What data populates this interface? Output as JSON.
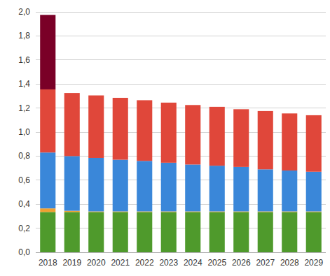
{
  "chart_data": {
    "type": "bar",
    "stacked": true,
    "grid": true,
    "categories": [
      "2018",
      "2019",
      "2020",
      "2021",
      "2022",
      "2023",
      "2024",
      "2025",
      "2026",
      "2027",
      "2028",
      "2029"
    ],
    "series": [
      {
        "color": "#4f9a2c",
        "values": [
          0.335,
          0.335,
          0.335,
          0.335,
          0.335,
          0.335,
          0.335,
          0.335,
          0.335,
          0.335,
          0.335,
          0.335
        ]
      },
      {
        "color": "#f0a030",
        "values": [
          0.03,
          0.01,
          0.005,
          0.005,
          0.005,
          0.005,
          0.005,
          0.005,
          0.005,
          0.005,
          0.005,
          0.005
        ]
      },
      {
        "color": "#3a87d9",
        "values": [
          0.465,
          0.455,
          0.445,
          0.43,
          0.42,
          0.405,
          0.39,
          0.38,
          0.37,
          0.35,
          0.34,
          0.33
        ]
      },
      {
        "color": "#e0473a",
        "values": [
          0.525,
          0.525,
          0.52,
          0.515,
          0.505,
          0.5,
          0.495,
          0.49,
          0.48,
          0.485,
          0.475,
          0.47
        ]
      },
      {
        "color": "#7a0027",
        "values": [
          0.62,
          0,
          0,
          0,
          0,
          0,
          0,
          0,
          0,
          0,
          0,
          0
        ]
      }
    ],
    "ylim": [
      0,
      2.0
    ],
    "yticks": [
      {
        "value": 0,
        "label": "0,0"
      },
      {
        "value": 0.2,
        "label": "0,2"
      },
      {
        "value": 0.4,
        "label": "0,4"
      },
      {
        "value": 0.6,
        "label": "0,6"
      },
      {
        "value": 0.8,
        "label": "0,8"
      },
      {
        "value": 1.0,
        "label": "1,0"
      },
      {
        "value": 1.2,
        "label": "1,2"
      },
      {
        "value": 1.4,
        "label": "1,4"
      },
      {
        "value": 1.6,
        "label": "1,6"
      },
      {
        "value": 1.8,
        "label": "1,8"
      },
      {
        "value": 2.0,
        "label": "2,0"
      }
    ]
  }
}
